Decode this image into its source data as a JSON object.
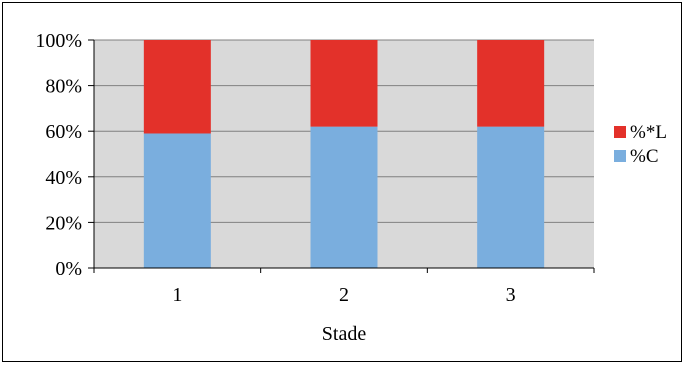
{
  "chart_data": {
    "type": "bar",
    "stacked": true,
    "categories": [
      "1",
      "2",
      "3"
    ],
    "series": [
      {
        "name": "%C",
        "values": [
          59,
          62,
          62
        ],
        "color": "#7aaede"
      },
      {
        "name": "%*L",
        "values": [
          41,
          38,
          38
        ],
        "color": "#e3312a"
      }
    ],
    "y_ticks": [
      "0%",
      "20%",
      "40%",
      "60%",
      "80%",
      "100%"
    ],
    "xlabel": "Stade",
    "ylabel": "",
    "ylim": [
      0,
      100
    ],
    "grid": true,
    "plot_background": "#d9d9d9",
    "legend_position": "right"
  }
}
